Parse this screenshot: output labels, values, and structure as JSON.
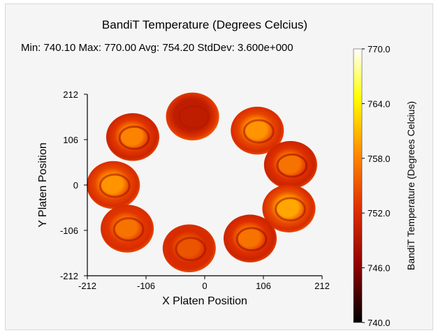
{
  "chart_data": {
    "type": "heatmap",
    "title": "BandiT Temperature (Degrees Celcius)",
    "stats": {
      "label": "Min: 740.10  Max: 770.00  Avg: 754.20  StdDev: 3.600e+000",
      "min": 740.1,
      "max": 770.0,
      "avg": 754.2,
      "stddev": 3.6
    },
    "xlabel": "X Platen Position",
    "ylabel": "Y Platen Position",
    "xlim": [
      -212,
      212
    ],
    "ylim": [
      -212,
      212
    ],
    "xticks": [
      "-212",
      "-106",
      "0",
      "106",
      "212"
    ],
    "yticks": [
      "212",
      "106",
      "0",
      "-106",
      "-212"
    ],
    "grid": false,
    "colorbar": {
      "label": "BandiT Temperature (Degrees Celcius)",
      "range": [
        740.0,
        770.0
      ],
      "ticks": [
        "770.0",
        "764.0",
        "758.0",
        "752.0",
        "746.0",
        "740.0"
      ],
      "colormap": [
        "#000000",
        "#8b0000",
        "#e03000",
        "#ff8c00",
        "#ffff00",
        "#ffffff"
      ]
    },
    "wafers": [
      {
        "x": -165,
        "y": 0,
        "r": 48,
        "center_temp": 759,
        "edge_temp": 752
      },
      {
        "x": -130,
        "y": 112,
        "r": 48,
        "center_temp": 758,
        "edge_temp": 751
      },
      {
        "x": -22,
        "y": 160,
        "r": 48,
        "center_temp": 750,
        "edge_temp": 753
      },
      {
        "x": 95,
        "y": 127,
        "r": 48,
        "center_temp": 759,
        "edge_temp": 752
      },
      {
        "x": 155,
        "y": 47,
        "r": 48,
        "center_temp": 757,
        "edge_temp": 751
      },
      {
        "x": 152,
        "y": -55,
        "r": 48,
        "center_temp": 760,
        "edge_temp": 752
      },
      {
        "x": 82,
        "y": -125,
        "r": 48,
        "center_temp": 757,
        "edge_temp": 751
      },
      {
        "x": -28,
        "y": -148,
        "r": 48,
        "center_temp": 755,
        "edge_temp": 752
      },
      {
        "x": -140,
        "y": -102,
        "r": 48,
        "center_temp": 757,
        "edge_temp": 752
      }
    ]
  }
}
